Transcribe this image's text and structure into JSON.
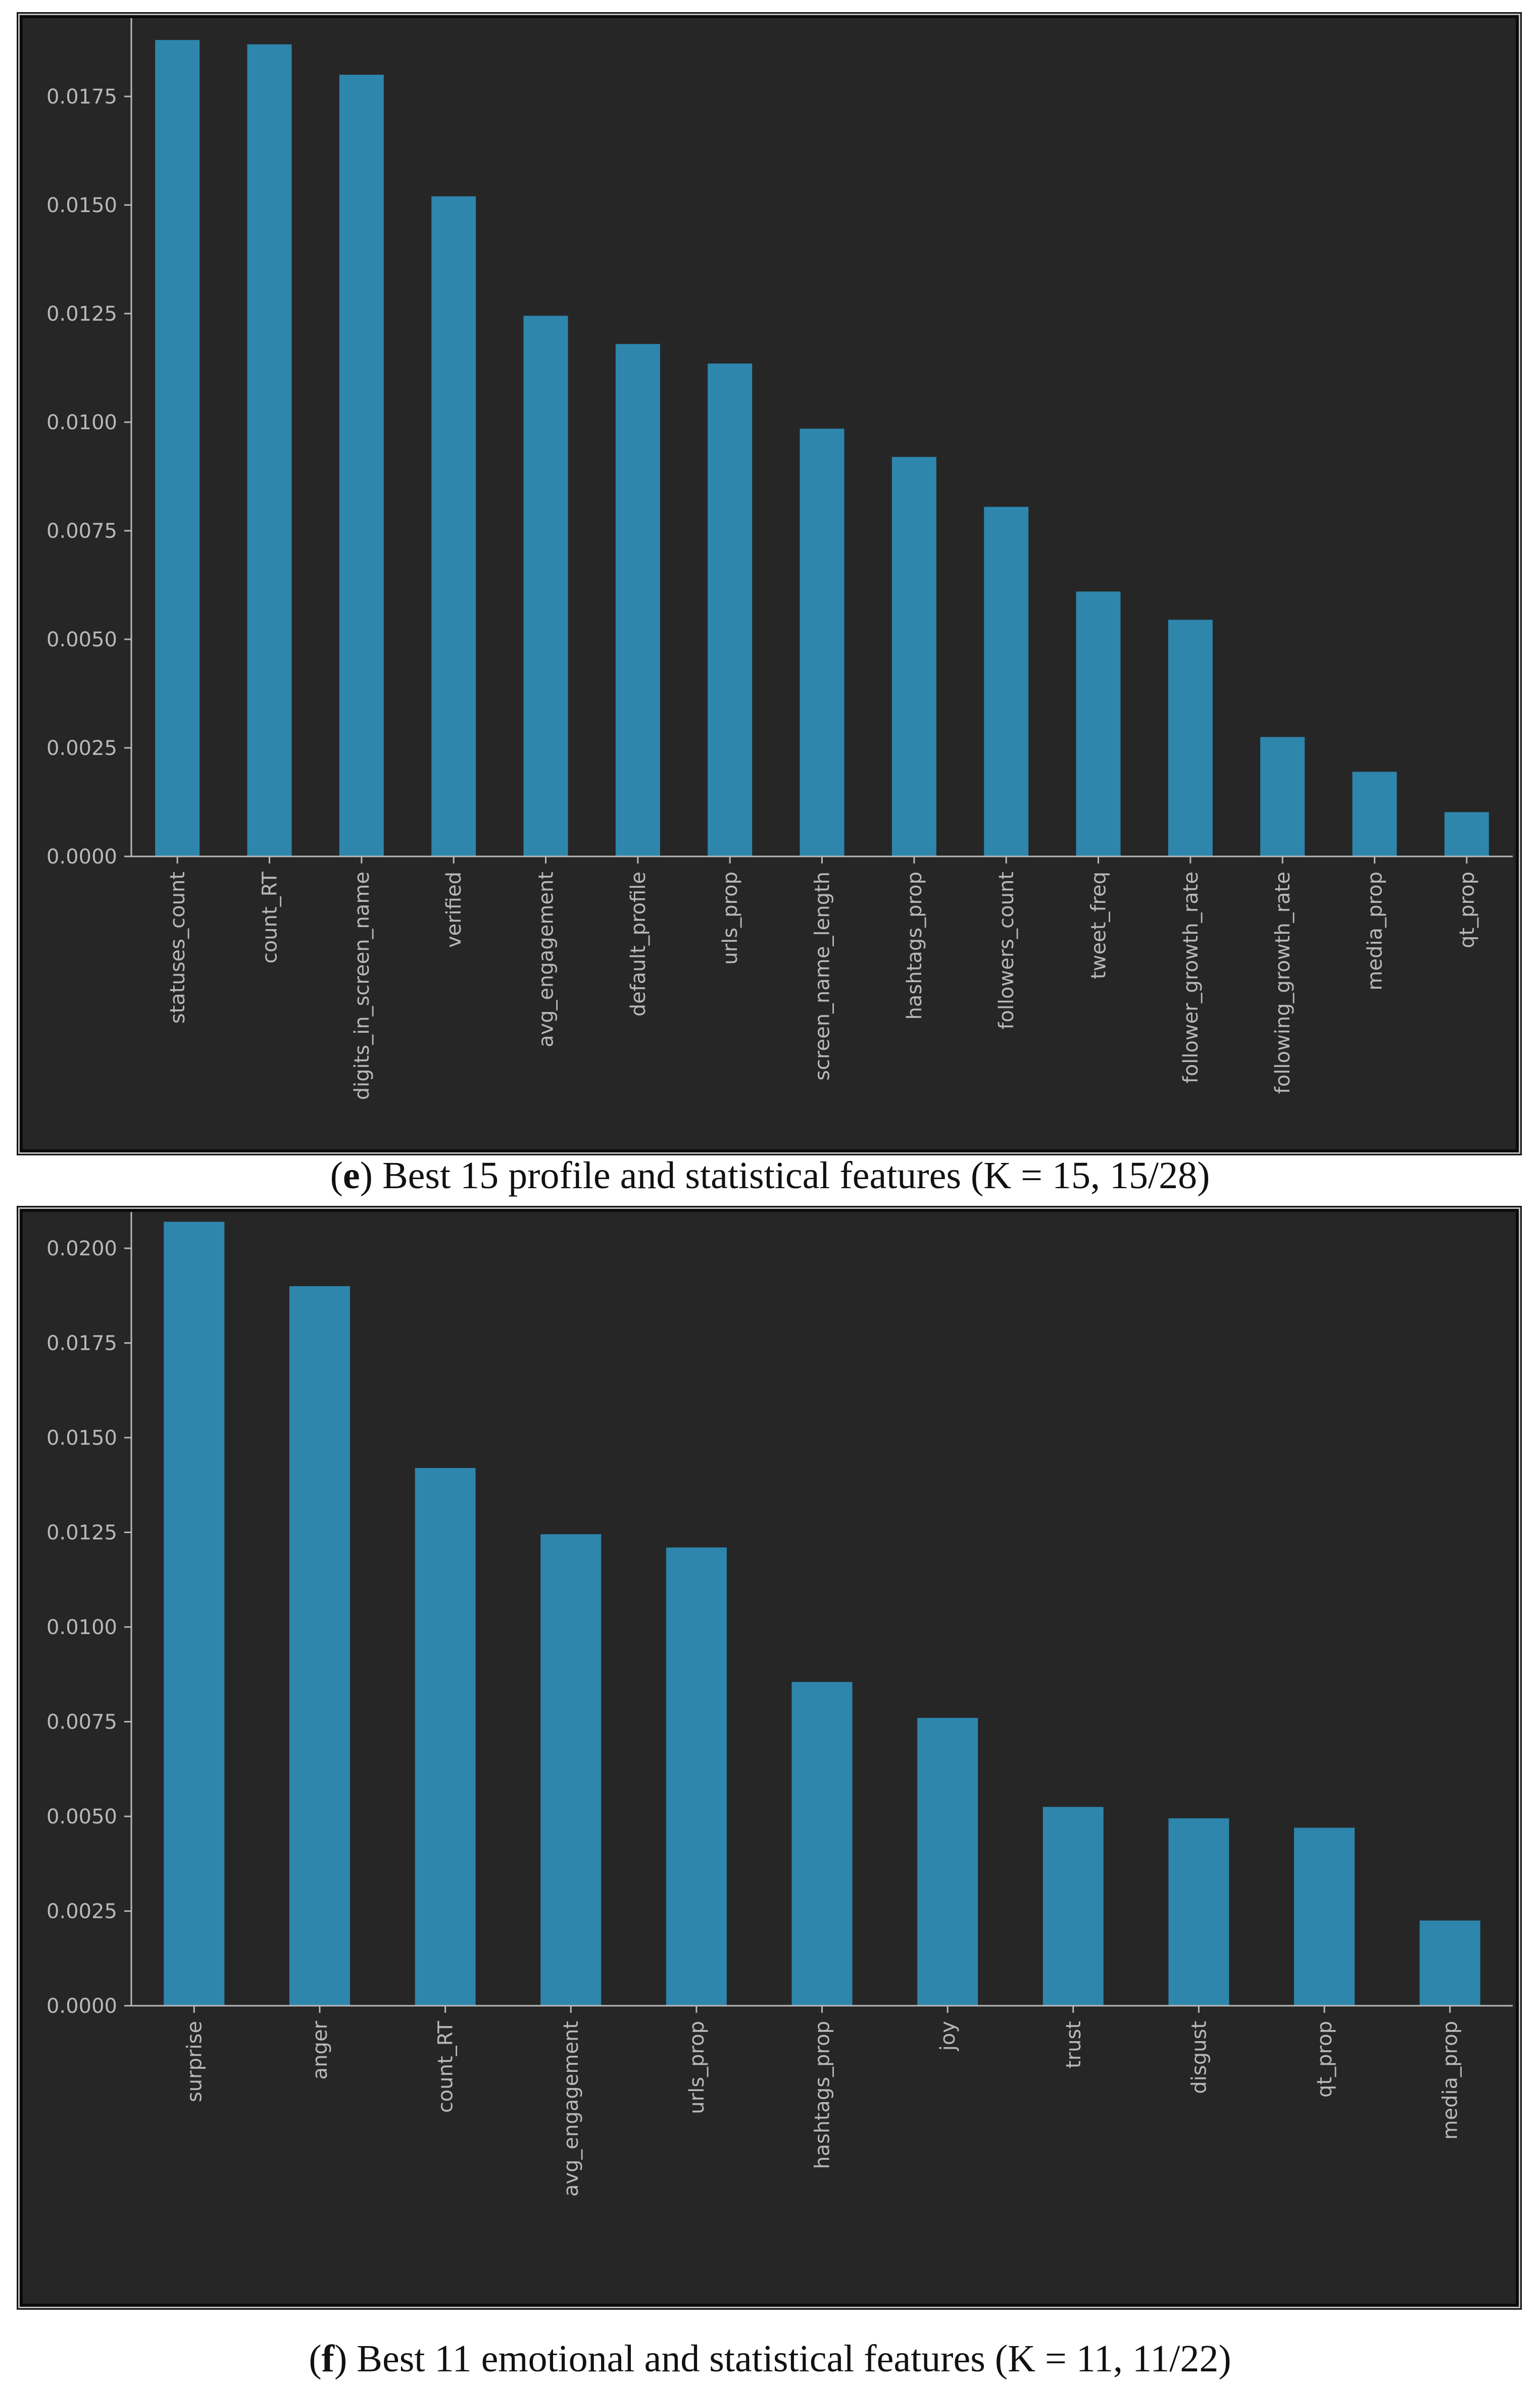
{
  "colors": {
    "bar": "#2e86ad",
    "axis": "#b8b8b8",
    "background": "#262626"
  },
  "chart_data": [
    {
      "type": "bar",
      "id": "e",
      "caption_letter": "e",
      "caption_text": "Best 15 profile and statistical features (K = 15, 15/28)",
      "categories": [
        "statuses_count",
        "count_RT",
        "digits_in_screen_name",
        "verified",
        "avg_engagement",
        "default_profile",
        "urls_prop",
        "screen_name_length",
        "hashtags_prop",
        "followers_count",
        "tweet_freq",
        "follower_growth_rate",
        "following_growth_rate",
        "media_prop",
        "qt_prop"
      ],
      "values": [
        0.0188,
        0.0187,
        0.018,
        0.0152,
        0.01245,
        0.0118,
        0.01135,
        0.00985,
        0.0092,
        0.00805,
        0.0061,
        0.00545,
        0.00275,
        0.00195,
        0.00102
      ],
      "yticks": [
        "0.0000",
        "0.0025",
        "0.0050",
        "0.0075",
        "0.0100",
        "0.0125",
        "0.0150",
        "0.0175"
      ],
      "ylim": [
        0,
        0.019
      ],
      "xlabel": "",
      "ylabel": "",
      "title": ""
    },
    {
      "type": "bar",
      "id": "f",
      "caption_letter": "f",
      "caption_text": "Best 11 emotional and statistical features (K = 11, 11/22)",
      "categories": [
        "surprise",
        "anger",
        "count_RT",
        "avg_engagement",
        "urls_prop",
        "hashtags_prop",
        "joy",
        "trust",
        "disgust",
        "qt_prop",
        "media_prop"
      ],
      "values": [
        0.0207,
        0.019,
        0.0142,
        0.01245,
        0.0121,
        0.00855,
        0.0076,
        0.00525,
        0.00495,
        0.0047,
        0.00225
      ],
      "yticks": [
        "0.0000",
        "0.0025",
        "0.0050",
        "0.0075",
        "0.0100",
        "0.0125",
        "0.0150",
        "0.0175",
        "0.0200"
      ],
      "ylim": [
        0,
        0.0208
      ],
      "xlabel": "",
      "ylabel": "",
      "title": ""
    }
  ]
}
